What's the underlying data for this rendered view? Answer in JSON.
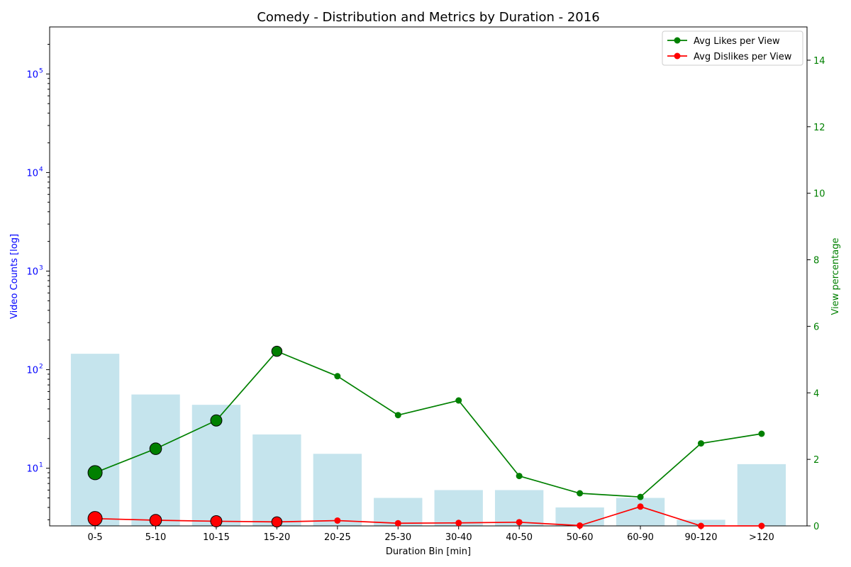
{
  "chart_data": {
    "type": "bar",
    "title": "Comedy - Distribution and Metrics by Duration - 2016",
    "xlabel": "Duration Bin [min]",
    "ylabel_left": "Video Counts [log]",
    "ylabel_right": "View percentage",
    "y_left_scale": "log",
    "y_left_lim": [
      2.6,
      300000
    ],
    "y_left_ticks": [
      10,
      100,
      1000,
      10000,
      100000
    ],
    "y_left_tick_labels": [
      [
        "10",
        "1"
      ],
      [
        "10",
        "2"
      ],
      [
        "10",
        "3"
      ],
      [
        "10",
        "4"
      ],
      [
        "10",
        "5"
      ]
    ],
    "y_right_lim": [
      0,
      15
    ],
    "y_right_ticks": [
      0,
      2,
      4,
      6,
      8,
      10,
      12,
      14
    ],
    "grid": false,
    "legend_position": "top-right",
    "categories": [
      "0-5",
      "5-10",
      "10-15",
      "15-20",
      "20-25",
      "25-30",
      "30-40",
      "40-50",
      "50-60",
      "60-90",
      "90-120",
      ">120"
    ],
    "bars": {
      "name": "Video Counts",
      "color": "#add8e6",
      "values": [
        145,
        56,
        44,
        22,
        14,
        5,
        6,
        6,
        4,
        5,
        3,
        11
      ]
    },
    "series": [
      {
        "name": "Avg Likes per View",
        "color": "#008000",
        "values": [
          1.6,
          2.32,
          3.17,
          5.25,
          4.5,
          3.33,
          3.77,
          1.5,
          0.98,
          0.87,
          2.48,
          2.77
        ]
      },
      {
        "name": "Avg Dislikes per View",
        "color": "#ff0000",
        "values": [
          0.22,
          0.17,
          0.14,
          0.12,
          0.16,
          0.08,
          0.09,
          0.11,
          0.01,
          0.58,
          0.0,
          0.0
        ]
      }
    ]
  },
  "colors": {
    "left_axis": "#0000ff",
    "right_axis": "#008000"
  }
}
